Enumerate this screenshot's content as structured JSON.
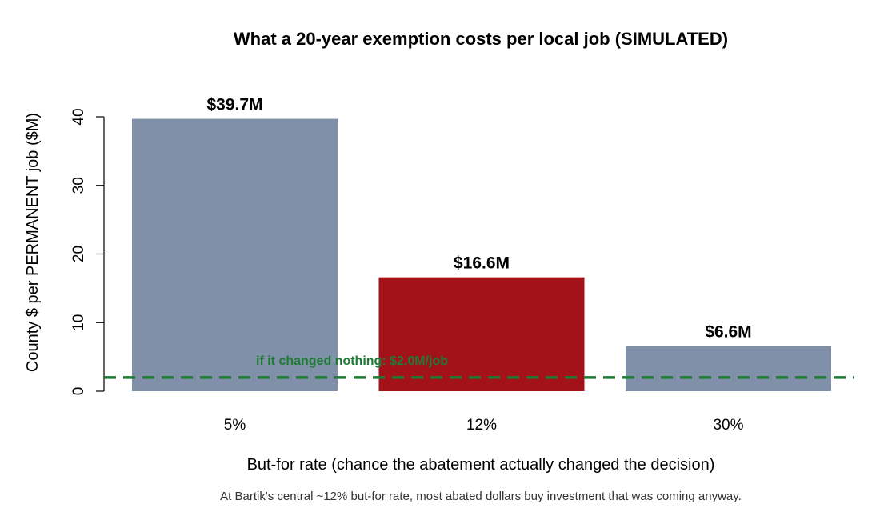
{
  "chart_data": {
    "type": "bar",
    "title": "What a 20-year exemption costs per local job (SIMULATED)",
    "xlabel": "But-for rate (chance the abatement actually changed the decision)",
    "ylabel": "County $ per PERMANENT job ($M)",
    "categories": [
      "5%",
      "12%",
      "30%"
    ],
    "values": [
      39.7,
      16.6,
      6.6
    ],
    "data_labels": [
      "$39.7M",
      "$16.6M",
      "$6.6M"
    ],
    "bar_colors": [
      "#8190a9",
      "#a31219",
      "#8190a9"
    ],
    "highlight_index": 1,
    "ylim": [
      0,
      40
    ],
    "yticks": [
      0,
      10,
      20,
      30,
      40
    ],
    "ytick_labels": [
      "0",
      "10",
      "20",
      "30",
      "40"
    ],
    "reference_line": {
      "value": 2.0,
      "label": "if it changed nothing: $2.0M/job",
      "color": "#1e7a35",
      "style": "dashed"
    },
    "caption": "At Bartik's central ~12% but-for rate, most abated dollars buy investment that was coming anyway.",
    "grid": false,
    "legend": "none"
  }
}
